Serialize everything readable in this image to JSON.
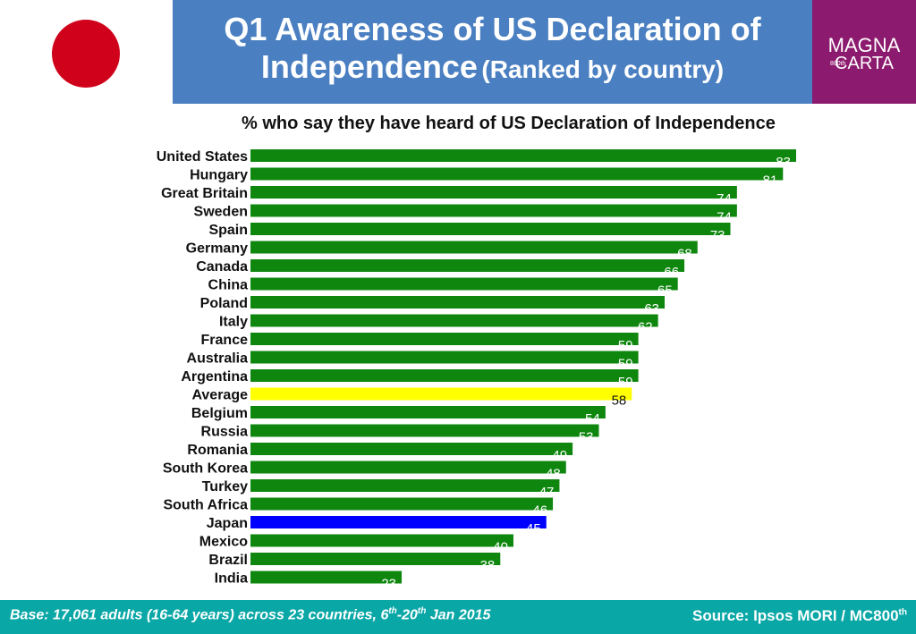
{
  "header": {
    "title_line1": "Q1 Awareness of US Declaration of",
    "title_line2": "Independence",
    "title_suffix": "(Ranked by country)"
  },
  "logo": {
    "line1": "MAGNA",
    "line2": "CARTA",
    "badge": "800th"
  },
  "footer": {
    "base_pre": "Base: 17,061 adults (16-64 years) across 23 countries, 6",
    "base_sup1": "th",
    "base_mid": "-20",
    "base_sup2": "th",
    "base_post": " Jan 2015",
    "source": "Source: Ipsos MORI / MC800",
    "source_sup": "th"
  },
  "colors": {
    "header_bg": "#4a7fc1",
    "logo_bg": "#8c1a6e",
    "footer_bg": "#0aa7a7",
    "flag_red": "#d0021b",
    "bar_default": "#0f870f",
    "bar_average": "#ffff00",
    "bar_highlight": "#0000ff"
  },
  "chart_data": {
    "type": "bar",
    "orientation": "horizontal",
    "title": "% who say they have heard of US Declaration of Independence",
    "categories": [
      "United States",
      "Hungary",
      "Great Britain",
      "Sweden",
      "Spain",
      "Germany",
      "Canada",
      "China",
      "Poland",
      "Italy",
      "France",
      "Australia",
      "Argentina",
      "Average",
      "Belgium",
      "Russia",
      "Romania",
      "South Korea",
      "Turkey",
      "South Africa",
      "Japan",
      "Mexico",
      "Brazil",
      "India"
    ],
    "values": [
      83,
      81,
      74,
      74,
      73,
      68,
      66,
      65,
      63,
      62,
      59,
      59,
      59,
      58,
      54,
      53,
      49,
      48,
      47,
      46,
      45,
      40,
      38,
      23
    ],
    "highlight": {
      "Average": "average",
      "Japan": "highlight"
    },
    "xlim": [
      0,
      83
    ]
  }
}
